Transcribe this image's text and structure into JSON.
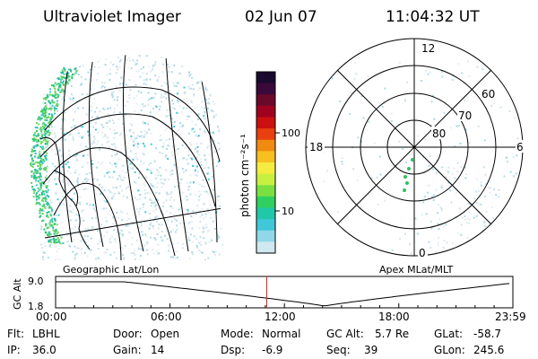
{
  "header": {
    "instrument": "Ultraviolet Imager",
    "date": "02 Jun 07",
    "time": "11:04:32 UT"
  },
  "colorbar": {
    "unit_label": "photon cm⁻²s⁻¹",
    "ticks": [
      "100",
      "10"
    ],
    "colors": [
      "#1a0a2e",
      "#3a0a3a",
      "#6a0a2a",
      "#a00020",
      "#cc1010",
      "#e84010",
      "#f08a10",
      "#f6c020",
      "#f4ec40",
      "#c8f040",
      "#7ae040",
      "#30d060",
      "#20c8a8",
      "#40c8d8",
      "#90d8e8",
      "#d0e8f0"
    ]
  },
  "polar": {
    "mlt_labels": [
      "12",
      "18",
      "6",
      "0"
    ],
    "lat_labels": [
      "60",
      "70",
      "80"
    ]
  },
  "timeline": {
    "ylabel": "GC Alt",
    "y_ticks": [
      "9.0",
      "1.8"
    ],
    "left_title": "Geographic Lat/Lon",
    "right_title": "Apex MLat/MLT",
    "x_ticks": [
      "00:00",
      "06:00",
      "12:00",
      "18:00",
      "23:59"
    ],
    "current_hour": 11.075,
    "perigee_hour": 14.1
  },
  "footer": [
    [
      {
        "k": "Flt:",
        "v": "LBHL"
      },
      {
        "k": "IP:",
        "v": "36.0"
      }
    ],
    [
      {
        "k": "Door:",
        "v": "Open"
      },
      {
        "k": "Gain:",
        "v": "14"
      }
    ],
    [
      {
        "k": "Mode:",
        "v": "Normal"
      },
      {
        "k": "Dsp:",
        "v": "-6.9"
      }
    ],
    [
      {
        "k": "GC Alt:",
        "v": "5.7 Re"
      },
      {
        "k": "Seq:",
        "v": "39"
      }
    ],
    [
      {
        "k": "GLat:",
        "v": "-58.7"
      },
      {
        "k": "GLon:",
        "v": "245.6"
      }
    ]
  ]
}
